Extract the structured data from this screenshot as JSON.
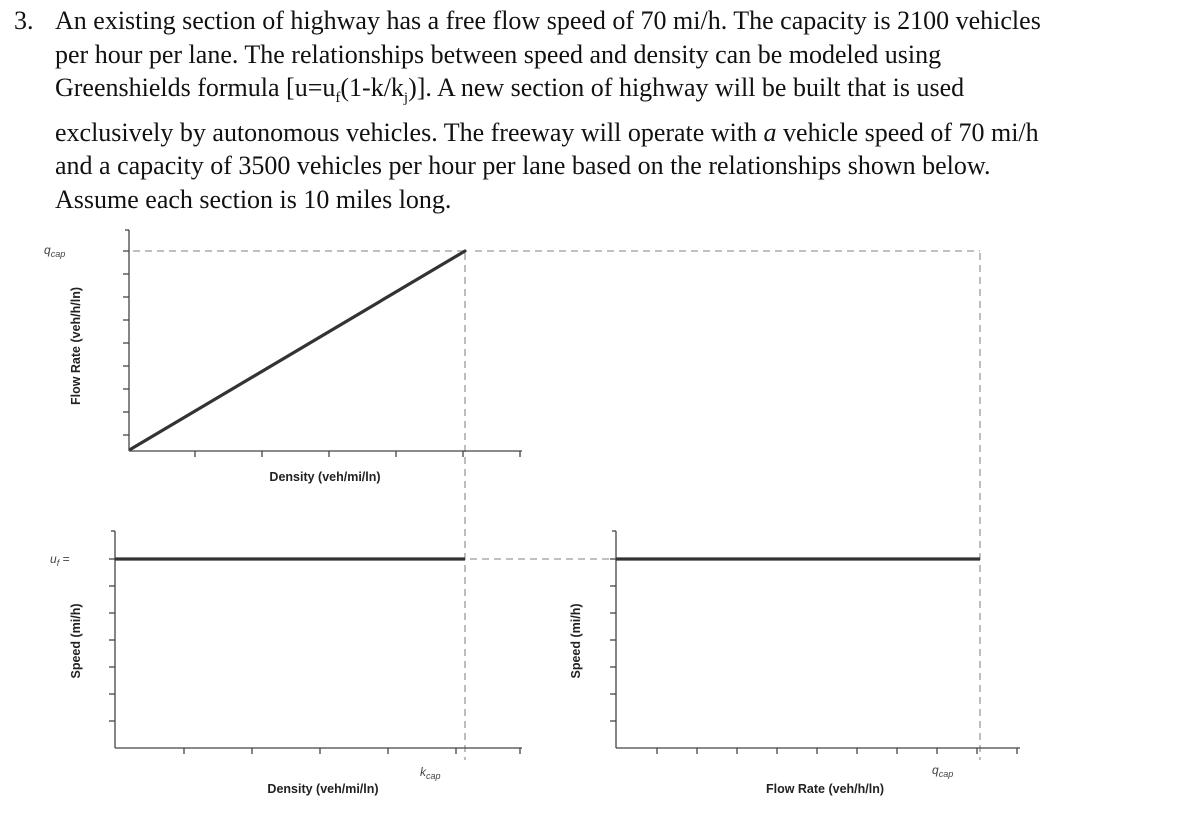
{
  "problem": {
    "number": "3.",
    "lines": [
      "An existing section of highway has a free flow speed of 70 mi/h. The capacity is 2100 vehicles",
      "per hour per lane.  The relationships between speed and density can be modeled using",
      "Greenshields formula [u=u_f(1-k/k_j)].  A new section of highway will be built that is used",
      "exclusively by autonomous vehicles. The freeway will operate with a vehicle speed of 70 mi/h",
      "and a capacity of 3500 vehicles per hour per lane based on the relationships shown below.",
      "Assume each section is 10 miles long."
    ],
    "l1": "An existing section of highway has a free flow speed of 70 mi/h. The capacity is 2100 vehicles",
    "l2": "per hour per lane.  The relationships between speed and density can be modeled using",
    "l3a": "Greenshields formula [u=u",
    "l3sub_f": "f",
    "l3b": "(1-k/k",
    "l3sub_j": "j",
    "l3c": ")].  A new section of highway will be built that is used",
    "l4a": "exclusively by autonomous vehicles. The freeway will operate with ",
    "l4em": "a",
    "l4b": " vehicle speed of 70 mi/h",
    "l5": "and a capacity of 3500 vehicles per hour per lane based on the relationships shown below.",
    "l6": "Assume each section is 10 miles long."
  },
  "charts": {
    "flow_density": {
      "ylabel": "Flow Rate (veh/h/ln)",
      "xlabel": "Density (veh/mi/ln)",
      "y_marker": "q",
      "y_marker_sub": "cap"
    },
    "speed_density": {
      "ylabel": "Speed (mi/h)",
      "xlabel": "Density (veh/mi/ln)",
      "y_marker": "u",
      "y_marker_sub": "f",
      "y_marker_suffix": " =",
      "x_marker": "k",
      "x_marker_sub": "cap"
    },
    "speed_flow": {
      "ylabel": "Speed (mi/h)",
      "xlabel": "Flow Rate (veh/h/ln)",
      "x_marker": "q",
      "x_marker_sub": "cap"
    }
  },
  "chart_data": [
    {
      "type": "line",
      "xlabel": "Density (veh/mi/ln)",
      "ylabel": "Flow Rate (veh/h/ln)",
      "series": [
        {
          "x": [
            0,
            1
          ],
          "y": [
            0,
            1
          ]
        }
      ],
      "note_marks": [
        "q_cap"
      ]
    },
    {
      "type": "line",
      "xlabel": "Density (veh/mi/ln)",
      "ylabel": "Speed (mi/h)",
      "series": [
        {
          "x": [
            0,
            1
          ],
          "y": [
            1,
            1
          ]
        }
      ],
      "note_marks": [
        "u_f =",
        "k_cap"
      ]
    },
    {
      "type": "line",
      "xlabel": "Flow Rate (veh/h/ln)",
      "ylabel": "Speed (mi/h)",
      "series": [
        {
          "x": [
            0,
            1
          ],
          "y": [
            1,
            1
          ]
        }
      ],
      "note_marks": [
        "q_cap"
      ]
    }
  ]
}
